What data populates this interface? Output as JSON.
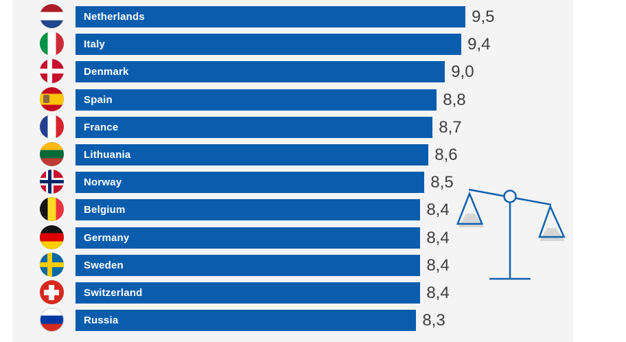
{
  "page": {
    "background": "#ffffff",
    "panel_background": "#f4f4f5"
  },
  "colors": {
    "bar_fill": "#0a5dad",
    "bar_label_text": "#ffffff",
    "value_text": "#3d3d3d",
    "scale_stroke": "#1060ae",
    "scale_shadow": "#d6d6d6"
  },
  "chart_data": {
    "type": "bar",
    "orientation": "horizontal",
    "title": "",
    "xlabel": "",
    "ylabel": "",
    "xlim": [
      0,
      9.5
    ],
    "grid": false,
    "legend": false,
    "decimal_separator": ",",
    "categories": [
      "Netherlands",
      "Italy",
      "Denmark",
      "Spain",
      "France",
      "Lithuania",
      "Norway",
      "Belgium",
      "Germany",
      "Sweden",
      "Switzerland",
      "Russia"
    ],
    "values": [
      9.5,
      9.4,
      9.0,
      8.8,
      8.7,
      8.6,
      8.5,
      8.4,
      8.4,
      8.4,
      8.4,
      8.3
    ],
    "value_labels": [
      "9,5",
      "9,4",
      "9,0",
      "8,8",
      "8,7",
      "8,6",
      "8,5",
      "8,4",
      "8,4",
      "8,4",
      "8,4",
      "8,3"
    ]
  },
  "flags": [
    {
      "icon": "netherlands-flag-icon",
      "type": "hstripes",
      "colors": [
        "#AE1C28",
        "#FFFFFF",
        "#21468B"
      ]
    },
    {
      "icon": "italy-flag-icon",
      "type": "vstripes",
      "colors": [
        "#009246",
        "#FFFFFF",
        "#CE2B37"
      ]
    },
    {
      "icon": "denmark-flag-icon",
      "type": "nordic",
      "bg": "#C8102E",
      "cross": "#FFFFFF"
    },
    {
      "icon": "spain-flag-icon",
      "type": "spain",
      "colors": [
        "#C60B1E",
        "#FFC400"
      ],
      "emblem": "#8A6642"
    },
    {
      "icon": "france-flag-icon",
      "type": "vstripes",
      "colors": [
        "#23408F",
        "#FFFFFF",
        "#D9232E"
      ]
    },
    {
      "icon": "lithuania-flag-icon",
      "type": "hstripes",
      "colors": [
        "#FDB913",
        "#046A38",
        "#BE3A34"
      ]
    },
    {
      "icon": "norway-flag-icon",
      "type": "nordic2",
      "bg": "#C8102E",
      "outer": "#FFFFFF",
      "inner": "#002868"
    },
    {
      "icon": "belgium-flag-icon",
      "type": "vstripes",
      "colors": [
        "#141414",
        "#FDDA24",
        "#EF3340"
      ]
    },
    {
      "icon": "germany-flag-icon",
      "type": "hstripes",
      "colors": [
        "#141414",
        "#DD0000",
        "#FFCE00"
      ]
    },
    {
      "icon": "sweden-flag-icon",
      "type": "nordic",
      "bg": "#006AA7",
      "cross": "#FECC02"
    },
    {
      "icon": "switzerland-flag-icon",
      "type": "plus",
      "bg": "#DA291C",
      "cross": "#FFFFFF"
    },
    {
      "icon": "russia-flag-icon",
      "type": "hstripes",
      "colors": [
        "#FFFFFF",
        "#0039A6",
        "#D52B1E"
      ],
      "bordered": true
    }
  ],
  "decor": {
    "scale_icon": "balance-scale-icon"
  }
}
